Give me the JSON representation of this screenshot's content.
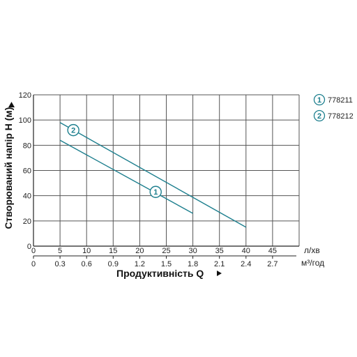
{
  "chart_data": {
    "type": "line",
    "xlabel": "Продуктивність  Q",
    "ylabel": "Створюваний напір H (м)",
    "x_unit": "л/хв",
    "x2_unit": "м³/год",
    "xlim": [
      0,
      50
    ],
    "ylim": [
      0,
      120
    ],
    "x_ticks": [
      0,
      5,
      10,
      15,
      20,
      25,
      30,
      35,
      40,
      45
    ],
    "x2_ticks": [
      "0",
      "0.3",
      "0.6",
      "0.9",
      "1.2",
      "1.5",
      "1.8",
      "2.1",
      "2.4",
      "2.7"
    ],
    "y_ticks": [
      0,
      20,
      40,
      60,
      80,
      100,
      120
    ],
    "grid": true,
    "legend_position": "top-right",
    "line_color": "#1d7f8e",
    "series": [
      {
        "marker": "1",
        "name": "778211",
        "x": [
          5,
          30
        ],
        "y": [
          84,
          26
        ],
        "marker_at": [
          23,
          43
        ]
      },
      {
        "marker": "2",
        "name": "778212",
        "x": [
          5,
          40
        ],
        "y": [
          98,
          15
        ],
        "marker_at": [
          7.5,
          92
        ]
      }
    ]
  }
}
